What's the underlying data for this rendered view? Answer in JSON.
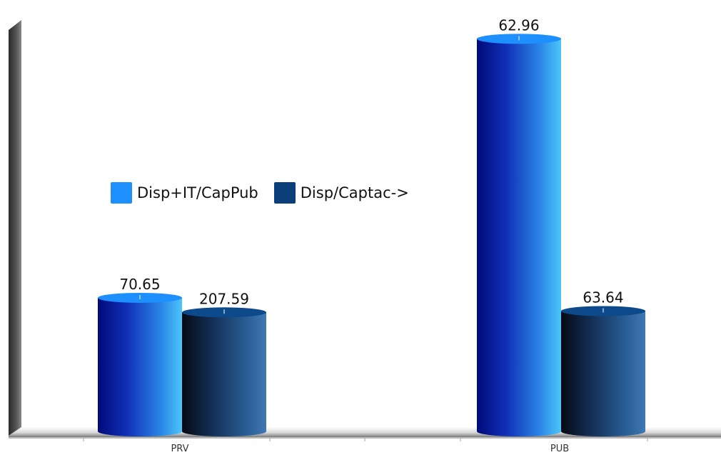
{
  "chart_data": {
    "type": "bar",
    "categories": [
      "PRV",
      "PUB"
    ],
    "series": [
      {
        "name": "Disp+IT/CapPub",
        "values": [
          70.65,
          207.59
        ],
        "color": "#1e8fff"
      },
      {
        "name": "Disp/Captac->",
        "values": [
          62.96,
          63.64
        ],
        "color": "#0a3f7a"
      }
    ],
    "value_labels": [
      "70.65",
      "207.59",
      "62.96",
      "63.64"
    ],
    "ylim": [
      0,
      210
    ],
    "legend_position": "center-left",
    "grid": false,
    "style": "3d-cylinder"
  }
}
